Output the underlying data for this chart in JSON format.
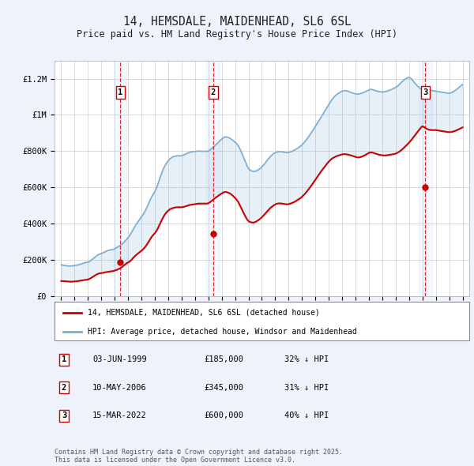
{
  "title": "14, HEMSDALE, MAIDENHEAD, SL6 6SL",
  "subtitle": "Price paid vs. HM Land Registry's House Price Index (HPI)",
  "ylim": [
    0,
    1300000
  ],
  "yticks": [
    0,
    200000,
    400000,
    600000,
    800000,
    1000000,
    1200000
  ],
  "ytick_labels": [
    "£0",
    "£200K",
    "£400K",
    "£600K",
    "£800K",
    "£1M",
    "£1.2M"
  ],
  "xlim_start": 1994.5,
  "xlim_end": 2025.5,
  "background_color": "#eef2fb",
  "plot_bg": "#ffffff",
  "red_color": "#cc0000",
  "blue_color": "#7aadd4",
  "sale_dates": [
    1999.42,
    2006.36,
    2022.21
  ],
  "sale_prices": [
    185000,
    345000,
    600000
  ],
  "sale_labels": [
    "1",
    "2",
    "3"
  ],
  "legend_red": "14, HEMSDALE, MAIDENHEAD, SL6 6SL (detached house)",
  "legend_blue": "HPI: Average price, detached house, Windsor and Maidenhead",
  "sale_info": [
    {
      "num": "1",
      "date": "03-JUN-1999",
      "price": "£185,000",
      "pct": "32% ↓ HPI"
    },
    {
      "num": "2",
      "date": "10-MAY-2006",
      "price": "£345,000",
      "pct": "31% ↓ HPI"
    },
    {
      "num": "3",
      "date": "15-MAR-2022",
      "price": "£600,000",
      "pct": "40% ↓ HPI"
    }
  ],
  "footer": "Contains HM Land Registry data © Crown copyright and database right 2025.\nThis data is licensed under the Open Government Licence v3.0.",
  "hpi_years": [
    1995.0,
    1995.083,
    1995.167,
    1995.25,
    1995.333,
    1995.417,
    1995.5,
    1995.583,
    1995.667,
    1995.75,
    1995.833,
    1995.917,
    1996.0,
    1996.083,
    1996.167,
    1996.25,
    1996.333,
    1996.417,
    1996.5,
    1996.583,
    1996.667,
    1996.75,
    1996.833,
    1996.917,
    1997.0,
    1997.083,
    1997.167,
    1997.25,
    1997.333,
    1997.417,
    1997.5,
    1997.583,
    1997.667,
    1997.75,
    1997.833,
    1997.917,
    1998.0,
    1998.083,
    1998.167,
    1998.25,
    1998.333,
    1998.417,
    1998.5,
    1998.583,
    1998.667,
    1998.75,
    1998.833,
    1998.917,
    1999.0,
    1999.083,
    1999.167,
    1999.25,
    1999.333,
    1999.417,
    1999.5,
    1999.583,
    1999.667,
    1999.75,
    1999.833,
    1999.917,
    2000.0,
    2000.083,
    2000.167,
    2000.25,
    2000.333,
    2000.417,
    2000.5,
    2000.583,
    2000.667,
    2000.75,
    2000.833,
    2000.917,
    2001.0,
    2001.083,
    2001.167,
    2001.25,
    2001.333,
    2001.417,
    2001.5,
    2001.583,
    2001.667,
    2001.75,
    2001.833,
    2001.917,
    2002.0,
    2002.083,
    2002.167,
    2002.25,
    2002.333,
    2002.417,
    2002.5,
    2002.583,
    2002.667,
    2002.75,
    2002.833,
    2002.917,
    2003.0,
    2003.083,
    2003.167,
    2003.25,
    2003.333,
    2003.417,
    2003.5,
    2003.583,
    2003.667,
    2003.75,
    2003.833,
    2003.917,
    2004.0,
    2004.083,
    2004.167,
    2004.25,
    2004.333,
    2004.417,
    2004.5,
    2004.583,
    2004.667,
    2004.75,
    2004.833,
    2004.917,
    2005.0,
    2005.083,
    2005.167,
    2005.25,
    2005.333,
    2005.417,
    2005.5,
    2005.583,
    2005.667,
    2005.75,
    2005.833,
    2005.917,
    2006.0,
    2006.083,
    2006.167,
    2006.25,
    2006.333,
    2006.417,
    2006.5,
    2006.583,
    2006.667,
    2006.75,
    2006.833,
    2006.917,
    2007.0,
    2007.083,
    2007.167,
    2007.25,
    2007.333,
    2007.417,
    2007.5,
    2007.583,
    2007.667,
    2007.75,
    2007.833,
    2007.917,
    2008.0,
    2008.083,
    2008.167,
    2008.25,
    2008.333,
    2008.417,
    2008.5,
    2008.583,
    2008.667,
    2008.75,
    2008.833,
    2008.917,
    2009.0,
    2009.083,
    2009.167,
    2009.25,
    2009.333,
    2009.417,
    2009.5,
    2009.583,
    2009.667,
    2009.75,
    2009.833,
    2009.917,
    2010.0,
    2010.083,
    2010.167,
    2010.25,
    2010.333,
    2010.417,
    2010.5,
    2010.583,
    2010.667,
    2010.75,
    2010.833,
    2010.917,
    2011.0,
    2011.083,
    2011.167,
    2011.25,
    2011.333,
    2011.417,
    2011.5,
    2011.583,
    2011.667,
    2011.75,
    2011.833,
    2011.917,
    2012.0,
    2012.083,
    2012.167,
    2012.25,
    2012.333,
    2012.417,
    2012.5,
    2012.583,
    2012.667,
    2012.75,
    2012.833,
    2012.917,
    2013.0,
    2013.083,
    2013.167,
    2013.25,
    2013.333,
    2013.417,
    2013.5,
    2013.583,
    2013.667,
    2013.75,
    2013.833,
    2013.917,
    2014.0,
    2014.083,
    2014.167,
    2014.25,
    2014.333,
    2014.417,
    2014.5,
    2014.583,
    2014.667,
    2014.75,
    2014.833,
    2014.917,
    2015.0,
    2015.083,
    2015.167,
    2015.25,
    2015.333,
    2015.417,
    2015.5,
    2015.583,
    2015.667,
    2015.75,
    2015.833,
    2015.917,
    2016.0,
    2016.083,
    2016.167,
    2016.25,
    2016.333,
    2016.417,
    2016.5,
    2016.583,
    2016.667,
    2016.75,
    2016.833,
    2016.917,
    2017.0,
    2017.083,
    2017.167,
    2017.25,
    2017.333,
    2017.417,
    2017.5,
    2017.583,
    2017.667,
    2017.75,
    2017.833,
    2017.917,
    2018.0,
    2018.083,
    2018.167,
    2018.25,
    2018.333,
    2018.417,
    2018.5,
    2018.583,
    2018.667,
    2018.75,
    2018.833,
    2018.917,
    2019.0,
    2019.083,
    2019.167,
    2019.25,
    2019.333,
    2019.417,
    2019.5,
    2019.583,
    2019.667,
    2019.75,
    2019.833,
    2019.917,
    2020.0,
    2020.083,
    2020.167,
    2020.25,
    2020.333,
    2020.417,
    2020.5,
    2020.583,
    2020.667,
    2020.75,
    2020.833,
    2020.917,
    2021.0,
    2021.083,
    2021.167,
    2021.25,
    2021.333,
    2021.417,
    2021.5,
    2021.583,
    2021.667,
    2021.75,
    2021.833,
    2021.917,
    2022.0,
    2022.083,
    2022.167,
    2022.25,
    2022.333,
    2022.417,
    2022.5,
    2022.583,
    2022.667,
    2022.75,
    2022.833,
    2022.917,
    2023.0,
    2023.083,
    2023.167,
    2023.25,
    2023.333,
    2023.417,
    2023.5,
    2023.583,
    2023.667,
    2023.75,
    2023.833,
    2023.917,
    2024.0,
    2024.083,
    2024.167,
    2024.25,
    2024.333,
    2024.417,
    2024.5,
    2024.583,
    2024.667,
    2024.75,
    2024.833,
    2024.917,
    2025.0
  ],
  "hpi_values": [
    172000,
    170000,
    169000,
    168000,
    167000,
    166500,
    166000,
    165500,
    165000,
    165500,
    166000,
    167000,
    168000,
    169000,
    170000,
    171000,
    173000,
    175000,
    177000,
    179000,
    181000,
    183000,
    185000,
    186000,
    187000,
    189000,
    193000,
    198000,
    203000,
    208000,
    213000,
    218000,
    223000,
    227000,
    230000,
    232000,
    234000,
    237000,
    240000,
    243000,
    246000,
    249000,
    251000,
    253000,
    254000,
    255000,
    256000,
    258000,
    261000,
    264000,
    268000,
    272000,
    275000,
    279000,
    284000,
    289000,
    295000,
    301000,
    308000,
    315000,
    322000,
    330000,
    340000,
    350000,
    362000,
    373000,
    383000,
    393000,
    402000,
    411000,
    420000,
    429000,
    437000,
    446000,
    455000,
    466000,
    478000,
    491000,
    505000,
    519000,
    533000,
    546000,
    557000,
    567000,
    578000,
    590000,
    605000,
    623000,
    642000,
    660000,
    677000,
    693000,
    707000,
    719000,
    730000,
    739000,
    747000,
    754000,
    760000,
    764000,
    768000,
    770000,
    772000,
    773000,
    774000,
    774000,
    774000,
    774000,
    775000,
    777000,
    779000,
    782000,
    785000,
    788000,
    791000,
    793000,
    795000,
    796000,
    797000,
    798000,
    798000,
    799000,
    800000,
    800000,
    800000,
    800000,
    799000,
    799000,
    799000,
    799000,
    799000,
    799000,
    801000,
    805000,
    810000,
    815000,
    820000,
    826000,
    832000,
    838000,
    844000,
    850000,
    856000,
    862000,
    867000,
    872000,
    876000,
    878000,
    878000,
    877000,
    875000,
    872000,
    868000,
    864000,
    859000,
    854000,
    849000,
    843000,
    836000,
    827000,
    816000,
    803000,
    789000,
    774000,
    759000,
    744000,
    729000,
    714000,
    703000,
    697000,
    693000,
    690000,
    688000,
    688000,
    689000,
    691000,
    694000,
    698000,
    702000,
    707000,
    713000,
    720000,
    727000,
    735000,
    743000,
    751000,
    759000,
    766000,
    772000,
    778000,
    783000,
    788000,
    791000,
    794000,
    796000,
    797000,
    797000,
    797000,
    796000,
    795000,
    794000,
    793000,
    792000,
    792000,
    793000,
    795000,
    797000,
    799000,
    802000,
    805000,
    808000,
    812000,
    816000,
    820000,
    824000,
    829000,
    835000,
    841000,
    848000,
    856000,
    864000,
    872000,
    881000,
    890000,
    899000,
    908000,
    917000,
    927000,
    937000,
    947000,
    957000,
    967000,
    977000,
    987000,
    997000,
    1007000,
    1017000,
    1027000,
    1037000,
    1047000,
    1057000,
    1067000,
    1077000,
    1086000,
    1094000,
    1101000,
    1107000,
    1112000,
    1117000,
    1121000,
    1125000,
    1128000,
    1131000,
    1133000,
    1134000,
    1134000,
    1133000,
    1131000,
    1129000,
    1127000,
    1124000,
    1122000,
    1120000,
    1118000,
    1116000,
    1115000,
    1115000,
    1116000,
    1117000,
    1119000,
    1121000,
    1123000,
    1126000,
    1129000,
    1132000,
    1135000,
    1138000,
    1140000,
    1141000,
    1140000,
    1138000,
    1136000,
    1134000,
    1132000,
    1130000,
    1129000,
    1128000,
    1127000,
    1127000,
    1127000,
    1128000,
    1129000,
    1131000,
    1133000,
    1135000,
    1137000,
    1140000,
    1143000,
    1146000,
    1149000,
    1152000,
    1156000,
    1161000,
    1167000,
    1173000,
    1179000,
    1185000,
    1191000,
    1196000,
    1200000,
    1203000,
    1206000,
    1208000,
    1205000,
    1200000,
    1193000,
    1185000,
    1177000,
    1170000,
    1163000,
    1157000,
    1152000,
    1148000,
    1145000,
    1143000,
    1142000,
    1141000,
    1140000,
    1139000,
    1138000,
    1137000,
    1136000,
    1135000,
    1134000,
    1133000,
    1132000,
    1131000,
    1130000,
    1129000,
    1128000,
    1127000,
    1126000,
    1125000,
    1124000,
    1123000,
    1122000,
    1121000,
    1120000,
    1120000,
    1121000,
    1123000,
    1126000,
    1130000,
    1134000,
    1138000,
    1143000,
    1148000,
    1153000,
    1158000,
    1163000,
    1168000
  ],
  "price_years": [
    1995.0,
    1995.083,
    1995.167,
    1995.25,
    1995.333,
    1995.417,
    1995.5,
    1995.583,
    1995.667,
    1995.75,
    1995.833,
    1995.917,
    1996.0,
    1996.083,
    1996.167,
    1996.25,
    1996.333,
    1996.417,
    1996.5,
    1996.583,
    1996.667,
    1996.75,
    1996.833,
    1996.917,
    1997.0,
    1997.083,
    1997.167,
    1997.25,
    1997.333,
    1997.417,
    1997.5,
    1997.583,
    1997.667,
    1997.75,
    1997.833,
    1997.917,
    1998.0,
    1998.083,
    1998.167,
    1998.25,
    1998.333,
    1998.417,
    1998.5,
    1998.583,
    1998.667,
    1998.75,
    1998.833,
    1998.917,
    1999.0,
    1999.083,
    1999.167,
    1999.25,
    1999.333,
    1999.417,
    1999.5,
    1999.583,
    1999.667,
    1999.75,
    1999.833,
    1999.917,
    2000.0,
    2000.083,
    2000.167,
    2000.25,
    2000.333,
    2000.417,
    2000.5,
    2000.583,
    2000.667,
    2000.75,
    2000.833,
    2000.917,
    2001.0,
    2001.083,
    2001.167,
    2001.25,
    2001.333,
    2001.417,
    2001.5,
    2001.583,
    2001.667,
    2001.75,
    2001.833,
    2001.917,
    2002.0,
    2002.083,
    2002.167,
    2002.25,
    2002.333,
    2002.417,
    2002.5,
    2002.583,
    2002.667,
    2002.75,
    2002.833,
    2002.917,
    2003.0,
    2003.083,
    2003.167,
    2003.25,
    2003.333,
    2003.417,
    2003.5,
    2003.583,
    2003.667,
    2003.75,
    2003.833,
    2003.917,
    2004.0,
    2004.083,
    2004.167,
    2004.25,
    2004.333,
    2004.417,
    2004.5,
    2004.583,
    2004.667,
    2004.75,
    2004.833,
    2004.917,
    2005.0,
    2005.083,
    2005.167,
    2005.25,
    2005.333,
    2005.417,
    2005.5,
    2005.583,
    2005.667,
    2005.75,
    2005.833,
    2005.917,
    2006.0,
    2006.083,
    2006.167,
    2006.25,
    2006.333,
    2006.417,
    2006.5,
    2006.583,
    2006.667,
    2006.75,
    2006.833,
    2006.917,
    2007.0,
    2007.083,
    2007.167,
    2007.25,
    2007.333,
    2007.417,
    2007.5,
    2007.583,
    2007.667,
    2007.75,
    2007.833,
    2007.917,
    2008.0,
    2008.083,
    2008.167,
    2008.25,
    2008.333,
    2008.417,
    2008.5,
    2008.583,
    2008.667,
    2008.75,
    2008.833,
    2008.917,
    2009.0,
    2009.083,
    2009.167,
    2009.25,
    2009.333,
    2009.417,
    2009.5,
    2009.583,
    2009.667,
    2009.75,
    2009.833,
    2009.917,
    2010.0,
    2010.083,
    2010.167,
    2010.25,
    2010.333,
    2010.417,
    2010.5,
    2010.583,
    2010.667,
    2010.75,
    2010.833,
    2010.917,
    2011.0,
    2011.083,
    2011.167,
    2011.25,
    2011.333,
    2011.417,
    2011.5,
    2011.583,
    2011.667,
    2011.75,
    2011.833,
    2011.917,
    2012.0,
    2012.083,
    2012.167,
    2012.25,
    2012.333,
    2012.417,
    2012.5,
    2012.583,
    2012.667,
    2012.75,
    2012.833,
    2012.917,
    2013.0,
    2013.083,
    2013.167,
    2013.25,
    2013.333,
    2013.417,
    2013.5,
    2013.583,
    2013.667,
    2013.75,
    2013.833,
    2013.917,
    2014.0,
    2014.083,
    2014.167,
    2014.25,
    2014.333,
    2014.417,
    2014.5,
    2014.583,
    2014.667,
    2014.75,
    2014.833,
    2014.917,
    2015.0,
    2015.083,
    2015.167,
    2015.25,
    2015.333,
    2015.417,
    2015.5,
    2015.583,
    2015.667,
    2015.75,
    2015.833,
    2015.917,
    2016.0,
    2016.083,
    2016.167,
    2016.25,
    2016.333,
    2016.417,
    2016.5,
    2016.583,
    2016.667,
    2016.75,
    2016.833,
    2016.917,
    2017.0,
    2017.083,
    2017.167,
    2017.25,
    2017.333,
    2017.417,
    2017.5,
    2017.583,
    2017.667,
    2017.75,
    2017.833,
    2017.917,
    2018.0,
    2018.083,
    2018.167,
    2018.25,
    2018.333,
    2018.417,
    2018.5,
    2018.583,
    2018.667,
    2018.75,
    2018.833,
    2018.917,
    2019.0,
    2019.083,
    2019.167,
    2019.25,
    2019.333,
    2019.417,
    2019.5,
    2019.583,
    2019.667,
    2019.75,
    2019.833,
    2019.917,
    2020.0,
    2020.083,
    2020.167,
    2020.25,
    2020.333,
    2020.417,
    2020.5,
    2020.583,
    2020.667,
    2020.75,
    2020.833,
    2020.917,
    2021.0,
    2021.083,
    2021.167,
    2021.25,
    2021.333,
    2021.417,
    2021.5,
    2021.583,
    2021.667,
    2021.75,
    2021.833,
    2021.917,
    2022.0,
    2022.083,
    2022.167,
    2022.25,
    2022.333,
    2022.417,
    2022.5,
    2022.583,
    2022.667,
    2022.75,
    2022.833,
    2022.917,
    2023.0,
    2023.083,
    2023.167,
    2023.25,
    2023.333,
    2023.417,
    2023.5,
    2023.583,
    2023.667,
    2023.75,
    2023.833,
    2023.917,
    2024.0,
    2024.083,
    2024.167,
    2024.25,
    2024.333,
    2024.417,
    2024.5,
    2024.583,
    2024.667,
    2024.75,
    2024.833,
    2024.917,
    2025.0
  ],
  "price_values": [
    82000,
    82000,
    81500,
    81000,
    80500,
    80000,
    79500,
    79000,
    78500,
    78500,
    79000,
    79500,
    80000,
    80500,
    81000,
    82000,
    83000,
    84000,
    85000,
    86000,
    87000,
    88000,
    89000,
    90000,
    91000,
    93000,
    96000,
    100000,
    104000,
    108000,
    112000,
    116000,
    119000,
    122000,
    124000,
    125000,
    126000,
    127000,
    128000,
    130000,
    131000,
    132000,
    133000,
    134000,
    135000,
    136000,
    137000,
    138000,
    140000,
    142000,
    144000,
    147000,
    150000,
    153000,
    157000,
    162000,
    167000,
    172000,
    177000,
    182000,
    185000,
    188000,
    193000,
    199000,
    206000,
    213000,
    219000,
    225000,
    230000,
    235000,
    240000,
    245000,
    250000,
    255000,
    261000,
    268000,
    276000,
    285000,
    295000,
    305000,
    315000,
    325000,
    333000,
    340000,
    347000,
    355000,
    365000,
    377000,
    391000,
    404000,
    417000,
    429000,
    440000,
    450000,
    458000,
    465000,
    471000,
    476000,
    480000,
    483000,
    485000,
    487000,
    488000,
    489000,
    490000,
    490000,
    490000,
    490000,
    490000,
    491000,
    492000,
    494000,
    496000,
    498000,
    500000,
    502000,
    503000,
    504000,
    505000,
    506000,
    507000,
    508000,
    509000,
    510000,
    510000,
    510000,
    510000,
    510000,
    510000,
    510000,
    510000,
    510000,
    512000,
    516000,
    520000,
    525000,
    530000,
    535000,
    540000,
    545000,
    549000,
    554000,
    558000,
    562000,
    566000,
    570000,
    573000,
    574000,
    574000,
    572000,
    570000,
    567000,
    563000,
    558000,
    553000,
    547000,
    541000,
    534000,
    526000,
    516000,
    504000,
    492000,
    479000,
    466000,
    453000,
    441000,
    430000,
    420000,
    413000,
    409000,
    407000,
    406000,
    405000,
    406000,
    408000,
    411000,
    415000,
    419000,
    424000,
    429000,
    435000,
    441000,
    448000,
    455000,
    462000,
    469000,
    476000,
    482000,
    488000,
    493000,
    497000,
    502000,
    505000,
    508000,
    510000,
    511000,
    511000,
    511000,
    510000,
    509000,
    508000,
    507000,
    506000,
    506000,
    507000,
    509000,
    511000,
    513000,
    516000,
    519000,
    522000,
    526000,
    530000,
    534000,
    538000,
    542000,
    548000,
    554000,
    560000,
    567000,
    574000,
    582000,
    590000,
    598000,
    607000,
    615000,
    624000,
    633000,
    642000,
    651000,
    660000,
    669000,
    678000,
    687000,
    695000,
    703000,
    711000,
    719000,
    727000,
    735000,
    742000,
    748000,
    754000,
    759000,
    763000,
    766000,
    769000,
    772000,
    774000,
    776000,
    778000,
    780000,
    782000,
    783000,
    783000,
    783000,
    782000,
    781000,
    779000,
    778000,
    776000,
    774000,
    772000,
    770000,
    768000,
    766000,
    765000,
    765000,
    766000,
    768000,
    770000,
    773000,
    776000,
    779000,
    783000,
    787000,
    790000,
    792000,
    793000,
    792000,
    790000,
    788000,
    786000,
    784000,
    782000,
    780000,
    779000,
    778000,
    777000,
    776000,
    776000,
    776000,
    777000,
    778000,
    779000,
    780000,
    781000,
    782000,
    783000,
    784000,
    786000,
    789000,
    792000,
    796000,
    800000,
    805000,
    810000,
    816000,
    822000,
    828000,
    834000,
    840000,
    847000,
    854000,
    861000,
    869000,
    877000,
    885000,
    893000,
    901000,
    909000,
    917000,
    925000,
    932000,
    937000,
    934000,
    930000,
    926000,
    923000,
    920000,
    918000,
    917000,
    916000,
    916000,
    916000,
    916000,
    916000,
    915000,
    914000,
    913000,
    912000,
    911000,
    910000,
    909000,
    908000,
    907000,
    906000,
    905000,
    905000,
    905000,
    906000,
    907000,
    909000,
    911000,
    913000,
    916000,
    919000,
    922000,
    925000,
    928000,
    931000
  ]
}
